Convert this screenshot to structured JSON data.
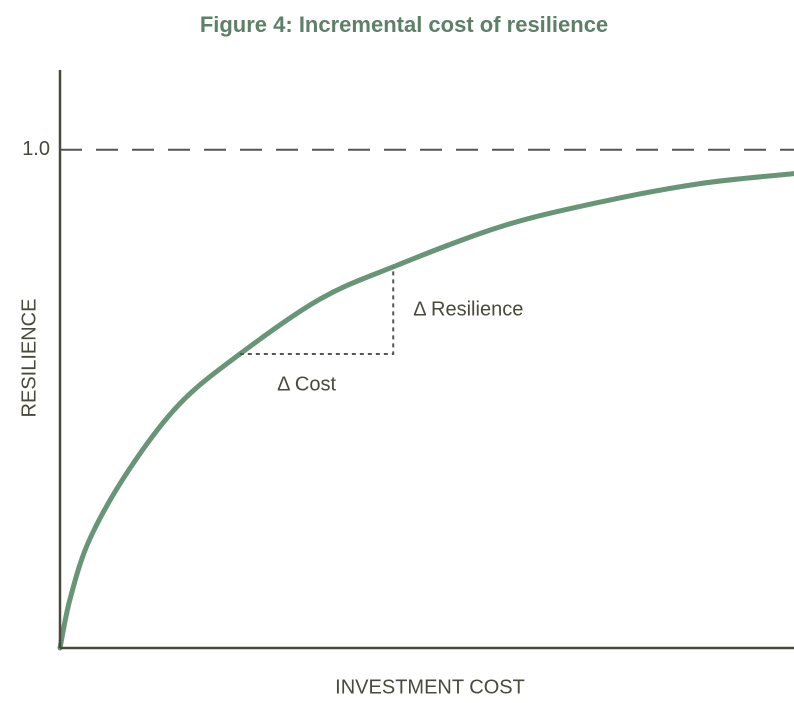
{
  "chart_data": {
    "type": "line",
    "title": "Figure 4: Incremental cost of resilience",
    "x_label": "INVESTMENT COST",
    "y_label": "RESILIENCE",
    "x": [
      0,
      0.014,
      0.041,
      0.095,
      0.163,
      0.245,
      0.354,
      0.454,
      0.599,
      0.736,
      0.872,
      1.0
    ],
    "series": [
      {
        "color": "#6a9478",
        "values": [
          0,
          0.1,
          0.22,
          0.36,
          0.49,
          0.59,
          0.7,
          0.765,
          0.845,
          0.895,
          0.932,
          0.952
        ]
      }
    ],
    "xlim": [
      0,
      1
    ],
    "ylim": [
      0,
      1.16
    ],
    "yticks": [
      {
        "value": 1,
        "label": "1.0"
      }
    ],
    "annotations": [
      "Δ Resilience",
      "Δ Cost"
    ]
  }
}
